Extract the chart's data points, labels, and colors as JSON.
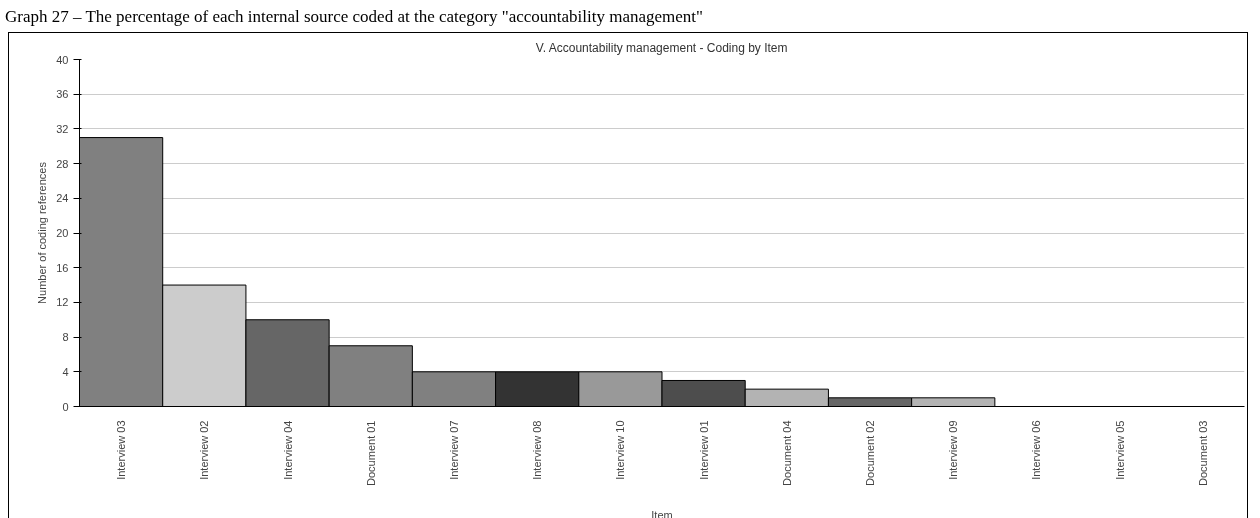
{
  "chart_data": {
    "type": "bar",
    "title": "V. Accountability management - Coding by Item",
    "xlabel": "Item",
    "ylabel": "Number of coding references",
    "annotations": [
      "Graph 27 – The percentage of each internal source coded at the category \"accountability management\""
    ],
    "categories": [
      "Interview 03",
      "Interview 02",
      "Interview 04",
      "Document 01",
      "Interview 07",
      "Interview 08",
      "Interview 10",
      "Interview 01",
      "Document 04",
      "Document 02",
      "Interview 09",
      "Interview 06",
      "Interview 05",
      "Document 03"
    ],
    "values": [
      31,
      14,
      10,
      7,
      4,
      4,
      4,
      3,
      2,
      1,
      1,
      0,
      0,
      0
    ],
    "colors": [
      "#808080",
      "#cccccc",
      "#666666",
      "#808080",
      "#808080",
      "#333333",
      "#999999",
      "#4d4d4d",
      "#b3b3b3",
      "#666666",
      "#b3b3b3",
      null,
      null,
      null
    ],
    "ylim": [
      0,
      40
    ],
    "yticks": [
      0,
      4,
      8,
      12,
      16,
      20,
      24,
      28,
      32,
      36,
      40
    ],
    "grid": "y"
  }
}
